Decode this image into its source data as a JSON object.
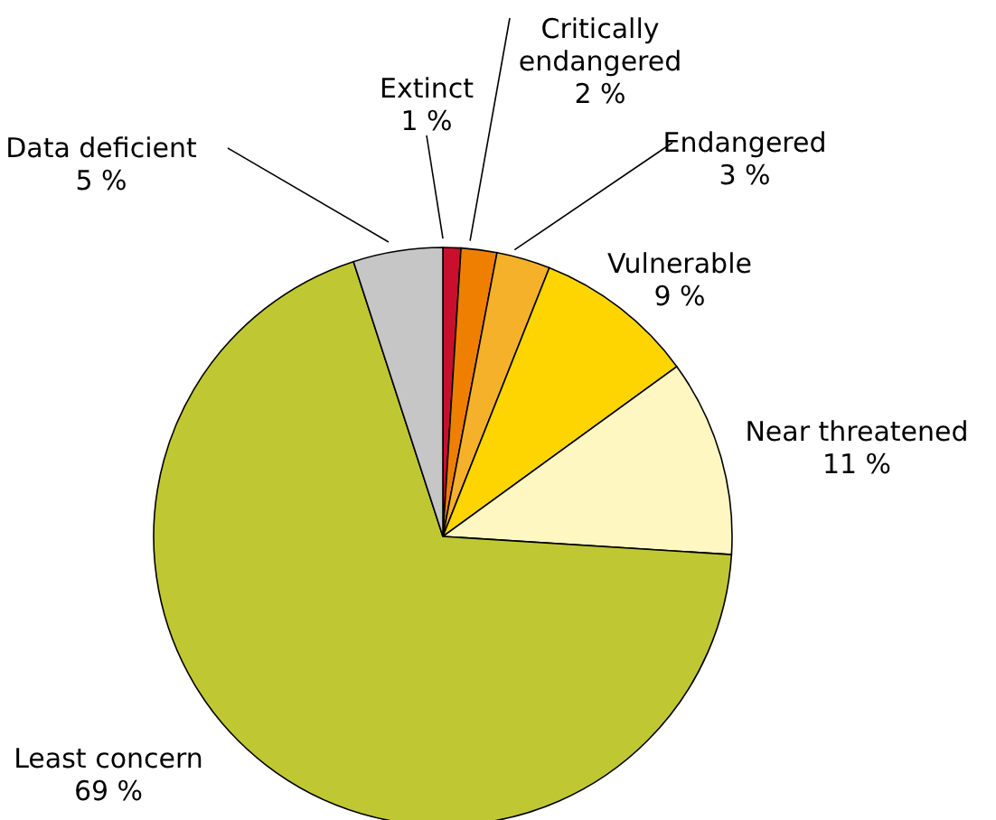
{
  "chart_data": {
    "type": "pie",
    "categories": [
      "Extinct",
      "Critically endangered",
      "Endangered",
      "Vulnerable",
      "Near threatened",
      "Least concern",
      "Data deficient"
    ],
    "values": [
      1,
      2,
      3,
      9,
      11,
      69,
      5
    ],
    "value_labels": [
      "1 %",
      "2 %",
      "3 %",
      "9 %",
      "11 %",
      "69 %",
      "5 %"
    ],
    "colors": [
      "#c8102e",
      "#ee7f00",
      "#f6b12a",
      "#ffd500",
      "#fff7c2",
      "#bfc832",
      "#c6c6c6"
    ]
  }
}
